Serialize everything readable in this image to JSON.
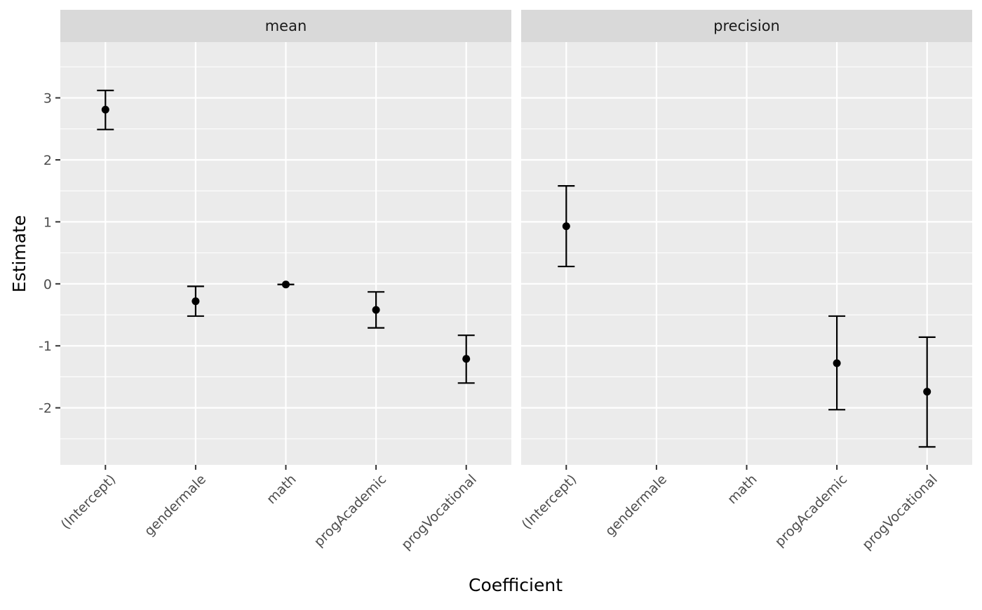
{
  "chart_data": {
    "type": "scatter",
    "geom": "point with error bars",
    "xlabel": "Coefficient",
    "ylabel": "Estimate",
    "categories": [
      "(Intercept)",
      "gendermale",
      "math",
      "progAcademic",
      "progVocational"
    ],
    "y_ticks": [
      -2,
      -1,
      0,
      1,
      2,
      3
    ],
    "ylim": [
      -2.92,
      3.9
    ],
    "grid": true,
    "panels": [
      {
        "label": "mean",
        "points": [
          {
            "x": "(Intercept)",
            "estimate": 2.81,
            "lower": 2.49,
            "upper": 3.12
          },
          {
            "x": "gendermale",
            "estimate": -0.28,
            "lower": -0.52,
            "upper": -0.04
          },
          {
            "x": "math",
            "estimate": -0.01,
            "lower": -0.01,
            "upper": -0.01
          },
          {
            "x": "progAcademic",
            "estimate": -0.42,
            "lower": -0.71,
            "upper": -0.13
          },
          {
            "x": "progVocational",
            "estimate": -1.21,
            "lower": -1.6,
            "upper": -0.83
          }
        ]
      },
      {
        "label": "precision",
        "points": [
          {
            "x": "(Intercept)",
            "estimate": 0.93,
            "lower": 0.28,
            "upper": 1.58
          },
          {
            "x": "progAcademic",
            "estimate": -1.28,
            "lower": -2.03,
            "upper": -0.52
          },
          {
            "x": "progVocational",
            "estimate": -1.74,
            "lower": -2.63,
            "upper": -0.86
          }
        ]
      }
    ],
    "colors": {
      "panel_background": "#ebebeb",
      "strip_background": "#d9d9d9",
      "grid": "#ffffff",
      "marks": "#000000",
      "tick_text": "#4d4d4d"
    }
  }
}
